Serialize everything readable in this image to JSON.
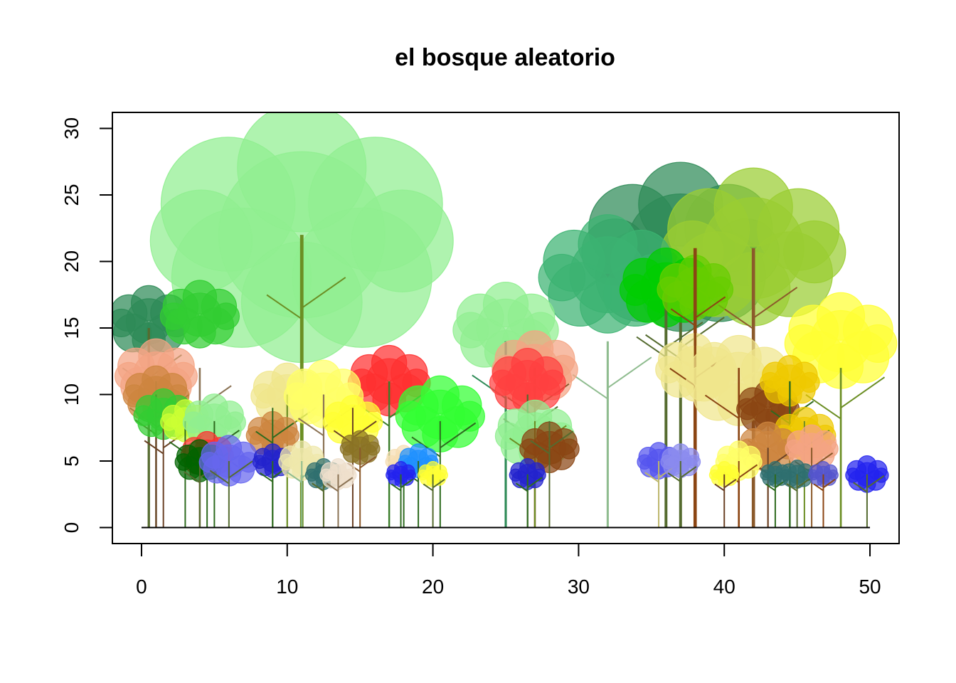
{
  "chart_data": {
    "type": "scatter",
    "title": "el bosque aleatorio",
    "xlabel": "",
    "ylabel": "",
    "xlim": [
      -2,
      52
    ],
    "ylim": [
      -1.2,
      31.2
    ],
    "x_ticks": [
      0,
      10,
      20,
      30,
      40,
      50
    ],
    "y_ticks": [
      0,
      5,
      10,
      15,
      20,
      25,
      30
    ],
    "x_tick_labels": [
      "0",
      "10",
      "20",
      "30",
      "40",
      "50"
    ],
    "y_tick_labels": [
      "0",
      "5",
      "10",
      "15",
      "20",
      "25",
      "30"
    ],
    "ground_line": [
      0,
      50
    ],
    "grid": false,
    "legend": "none",
    "trees": [
      {
        "x": 11,
        "h": 22,
        "r": 9.2,
        "cy": 22,
        "crown": "#90EE90",
        "trunk": "#6B8E23"
      },
      {
        "x": 37,
        "h": 18,
        "r": 6.0,
        "cy": 21,
        "crown": "#2E8B57",
        "trunk": "#556B2F"
      },
      {
        "x": 42,
        "h": 21,
        "r": 5.6,
        "cy": 21,
        "crown": "#9ACD32",
        "trunk": "#8B5A2B"
      },
      {
        "x": 32,
        "h": 14,
        "r": 4.2,
        "cy": 19,
        "crown": "#3CB371",
        "trunk": "#8FBC8F"
      },
      {
        "x": 25,
        "h": 14,
        "r": 3.2,
        "cy": 15,
        "crown": "#90EE90",
        "trunk": "#2E8B57"
      },
      {
        "x": 0.5,
        "h": 15,
        "r": 2.5,
        "cy": 15.5,
        "crown": "#2E8B57",
        "trunk": "#556B2F"
      },
      {
        "x": 4,
        "h": 12,
        "r": 2.4,
        "cy": 16,
        "crown": "#32CD32",
        "trunk": "#8B7355"
      },
      {
        "x": 36,
        "h": 18,
        "r": 2.8,
        "cy": 18,
        "crown": "#00CD00",
        "trunk": "#556B2F"
      },
      {
        "x": 38,
        "h": 21,
        "r": 2.3,
        "cy": 18,
        "crown": "#66CD00",
        "trunk": "#8B4513"
      },
      {
        "x": 38,
        "h": 15,
        "r": 2.4,
        "cy": 12,
        "crown": "#F0E68C",
        "trunk": "#8B4513"
      },
      {
        "x": 48,
        "h": 12,
        "r": 3.4,
        "cy": 14,
        "crown": "#FFFF33",
        "trunk": "#6B8E23"
      },
      {
        "x": 1,
        "h": 11,
        "r": 2.5,
        "cy": 11.5,
        "crown": "#F4A483",
        "trunk": "#556B2F"
      },
      {
        "x": 1,
        "h": 10,
        "r": 2.0,
        "cy": 10,
        "crown": "#CD853F",
        "trunk": "#6B4226"
      },
      {
        "x": 17,
        "h": 11,
        "r": 2.5,
        "cy": 11,
        "crown": "#FF3030",
        "trunk": "#3A7D2A"
      },
      {
        "x": 27,
        "h": 12,
        "r": 2.6,
        "cy": 12,
        "crown": "#F4A483",
        "trunk": "#8B5A2B"
      },
      {
        "x": 26.5,
        "h": 10,
        "r": 2.3,
        "cy": 11,
        "crown": "#FF4040",
        "trunk": "#556B2F"
      },
      {
        "x": 20.5,
        "h": 8,
        "r": 2.7,
        "cy": 8.5,
        "crown": "#32FF32",
        "trunk": "#2E6B1F"
      },
      {
        "x": 27,
        "h": 8,
        "r": 2.4,
        "cy": 7,
        "crown": "#90EE90",
        "trunk": "#6B8E23"
      },
      {
        "x": 10,
        "h": 10,
        "r": 2.2,
        "cy": 10,
        "crown": "#F0E68C",
        "trunk": "#6B8E23"
      },
      {
        "x": 12.5,
        "h": 10,
        "r": 2.4,
        "cy": 10,
        "crown": "#FFFF66",
        "trunk": "#8B7355"
      },
      {
        "x": 41,
        "h": 12,
        "r": 3.2,
        "cy": 11,
        "crown": "#F0E68C",
        "trunk": "#8B4513"
      },
      {
        "x": 1.5,
        "h": 8,
        "r": 1.8,
        "cy": 8.5,
        "crown": "#32CD32",
        "trunk": "#6B4226"
      },
      {
        "x": 3,
        "h": 8,
        "r": 1.5,
        "cy": 8,
        "crown": "#CCFF33",
        "trunk": "#2E6B1F"
      },
      {
        "x": 5,
        "h": 8,
        "r": 1.9,
        "cy": 8,
        "crown": "#90EE90",
        "trunk": "#2E6B1F"
      },
      {
        "x": 9,
        "h": 9,
        "r": 1.6,
        "cy": 7,
        "crown": "#CD853F",
        "trunk": "#2E6B1F"
      },
      {
        "x": 14.5,
        "h": 9,
        "r": 1.8,
        "cy": 8,
        "crown": "#FFFF33",
        "trunk": "#6B4226"
      },
      {
        "x": 28,
        "h": 8,
        "r": 1.8,
        "cy": 6,
        "crown": "#8B4513",
        "trunk": "#556B2F"
      },
      {
        "x": 43,
        "h": 8,
        "r": 1.9,
        "cy": 9,
        "crown": "#8B4513",
        "trunk": "#8B4513"
      },
      {
        "x": 44.5,
        "h": 11,
        "r": 1.8,
        "cy": 11,
        "crown": "#EEC900",
        "trunk": "#2E6B1F"
      },
      {
        "x": 45.5,
        "h": 8,
        "r": 1.9,
        "cy": 7,
        "crown": "#EEC900",
        "trunk": "#6B8E23"
      },
      {
        "x": 43,
        "h": 6,
        "r": 1.8,
        "cy": 6,
        "crown": "#CD853F",
        "trunk": "#6B4226"
      },
      {
        "x": 46,
        "h": 6,
        "r": 1.6,
        "cy": 6,
        "crown": "#F4A483",
        "trunk": "#8B5A2B"
      },
      {
        "x": 41,
        "h": 5,
        "r": 1.4,
        "cy": 5,
        "crown": "#FFFF66",
        "trunk": "#8B4513"
      },
      {
        "x": 4.5,
        "h": 6,
        "r": 1.6,
        "cy": 5.5,
        "crown": "#FF3030",
        "trunk": "#2E6B1F"
      },
      {
        "x": 4,
        "h": 5,
        "r": 1.5,
        "cy": 5,
        "crown": "#006400",
        "trunk": "#556B2F"
      },
      {
        "x": 6,
        "h": 5,
        "r": 1.8,
        "cy": 5,
        "crown": "#6666EE",
        "trunk": "#556B2F"
      },
      {
        "x": 9,
        "h": 5,
        "r": 1.2,
        "cy": 5,
        "crown": "#2323CD",
        "trunk": "#2E6B1F"
      },
      {
        "x": 11,
        "h": 5,
        "r": 1.4,
        "cy": 5,
        "crown": "#EEE8AA",
        "trunk": "#8FBC8F"
      },
      {
        "x": 15,
        "h": 6,
        "r": 1.2,
        "cy": 6,
        "crown": "#8B7325",
        "trunk": "#8B5A2B"
      },
      {
        "x": 12.5,
        "h": 4,
        "r": 1.1,
        "cy": 4,
        "crown": "#2F6F6F",
        "trunk": "#556B2F"
      },
      {
        "x": 13.5,
        "h": 4,
        "r": 1.1,
        "cy": 4,
        "crown": "#EEDFCC",
        "trunk": "#8B7355"
      },
      {
        "x": 18,
        "h": 5,
        "r": 1.1,
        "cy": 5,
        "crown": "#F5DEB3",
        "trunk": "#2E6B1F"
      },
      {
        "x": 19,
        "h": 5,
        "r": 1.2,
        "cy": 5,
        "crown": "#1E90FF",
        "trunk": "#2E6B1F"
      },
      {
        "x": 17.8,
        "h": 4,
        "r": 0.9,
        "cy": 4,
        "crown": "#2323EE",
        "trunk": "#2E6B1F"
      },
      {
        "x": 20,
        "h": 4,
        "r": 0.9,
        "cy": 4,
        "crown": "#FFFF33",
        "trunk": "#556B2F"
      },
      {
        "x": 26.5,
        "h": 4,
        "r": 1.1,
        "cy": 4,
        "crown": "#2323CD",
        "trunk": "#2E6B1F"
      },
      {
        "x": 35.5,
        "h": 5,
        "r": 1.3,
        "cy": 5,
        "crown": "#5555EE",
        "trunk": "#BDB76B"
      },
      {
        "x": 37,
        "h": 5,
        "r": 1.2,
        "cy": 5,
        "crown": "#8B8BEE",
        "trunk": "#556B2F"
      },
      {
        "x": 40,
        "h": 4,
        "r": 0.9,
        "cy": 4,
        "crown": "#FFFF33",
        "trunk": "#6B4226"
      },
      {
        "x": 43.5,
        "h": 4,
        "r": 0.9,
        "cy": 4,
        "crown": "#2F6F6F",
        "trunk": "#2E6B1F"
      },
      {
        "x": 45,
        "h": 4,
        "r": 1.0,
        "cy": 4,
        "crown": "#2F6F6F",
        "trunk": "#556B2F"
      },
      {
        "x": 46.8,
        "h": 4,
        "r": 0.9,
        "cy": 4,
        "crown": "#5555CD",
        "trunk": "#8B4513"
      },
      {
        "x": 49.8,
        "h": 4,
        "r": 1.3,
        "cy": 4,
        "crown": "#2323EE",
        "trunk": "#556B2F"
      }
    ]
  }
}
